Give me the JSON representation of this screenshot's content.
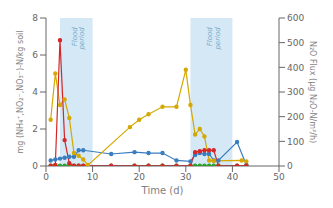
{
  "chart_data": {
    "type": "line",
    "xlabel": "Time (d)",
    "ylabel": "mg (NH₄⁺,NO₂⁻,NO₃⁻)-N/kg soil",
    "y2label": "N₂O Flux (μg N₂O-N/m²/h)",
    "xlim": [
      0,
      50
    ],
    "ylim": [
      0,
      8
    ],
    "y2lim": [
      0,
      600
    ],
    "xticks": [
      0,
      10,
      20,
      30,
      40,
      50
    ],
    "yticks": [
      0,
      2,
      4,
      6,
      8
    ],
    "y2ticks": [
      0,
      100,
      200,
      300,
      400,
      500,
      600
    ],
    "grid": false,
    "series": [
      {
        "color": "#3a7ebf",
        "marker": "circle",
        "x": [
          1,
          2,
          3,
          4,
          5,
          6,
          7,
          8,
          14,
          19,
          22,
          25,
          28,
          31,
          32,
          33,
          34,
          35,
          36,
          37,
          41,
          43
        ],
        "values": [
          0.3,
          0.35,
          0.4,
          0.45,
          0.5,
          0.5,
          0.85,
          0.85,
          0.65,
          0.75,
          0.7,
          0.7,
          0.3,
          0.25,
          0.6,
          0.7,
          0.65,
          0.65,
          0.3,
          0.3,
          1.3,
          0.05
        ]
      },
      {
        "color": "#2ca02c",
        "marker": "circle",
        "x": [
          1,
          2,
          3,
          4,
          5,
          6,
          7,
          8,
          14,
          19,
          22,
          25,
          28,
          31,
          32,
          33,
          34,
          35,
          36,
          37,
          41,
          43
        ],
        "values": [
          0.02,
          0.02,
          0.02,
          0.02,
          0.02,
          0.02,
          0.02,
          0.02,
          0.02,
          0.02,
          0.02,
          0.02,
          0.02,
          0.02,
          0.02,
          0.02,
          0.02,
          0.02,
          0.02,
          0.02,
          0.02,
          0.02
        ]
      },
      {
        "color": "#d4a800",
        "marker": "circle",
        "x": [
          1,
          2,
          3,
          4,
          5,
          6,
          7,
          8,
          9,
          18,
          20,
          22,
          25,
          28,
          30,
          31,
          32,
          33,
          34,
          35,
          36,
          42,
          43
        ],
        "values": [
          2.5,
          5.0,
          3.3,
          3.6,
          2.6,
          0.7,
          0.55,
          0.35,
          0.05,
          2.1,
          2.5,
          2.8,
          3.2,
          3.2,
          5.2,
          3.3,
          1.7,
          2.0,
          1.6,
          0.3,
          0.28,
          0.3,
          0.25
        ]
      },
      {
        "color": "#d62728",
        "marker": "circle",
        "x": [
          1,
          2,
          3,
          4,
          5,
          6,
          7,
          8,
          14,
          19,
          22,
          25,
          28,
          31,
          32,
          33,
          34,
          35,
          36,
          37,
          41,
          43
        ],
        "values": [
          0.02,
          0.05,
          6.8,
          1.4,
          0.15,
          0.02,
          0.02,
          0.02,
          0.02,
          0.02,
          0.02,
          0.02,
          0.02,
          0.02,
          0.75,
          0.8,
          0.85,
          0.85,
          0.85,
          0.02,
          0.02,
          0.02
        ]
      }
    ],
    "shaded_regions": [
      {
        "x": [
          3,
          10
        ],
        "color": "#b8d8f0"
      },
      {
        "x": [
          31,
          40
        ],
        "color": "#b8d8f0"
      }
    ],
    "annotations": [
      {
        "text": "Flood\nperiod",
        "x": 7,
        "y": 7.5,
        "color": "#7aaac8"
      },
      {
        "text": "Flood\nperiod",
        "x": 36,
        "y": 7.5,
        "color": "#7aaac8"
      }
    ]
  }
}
